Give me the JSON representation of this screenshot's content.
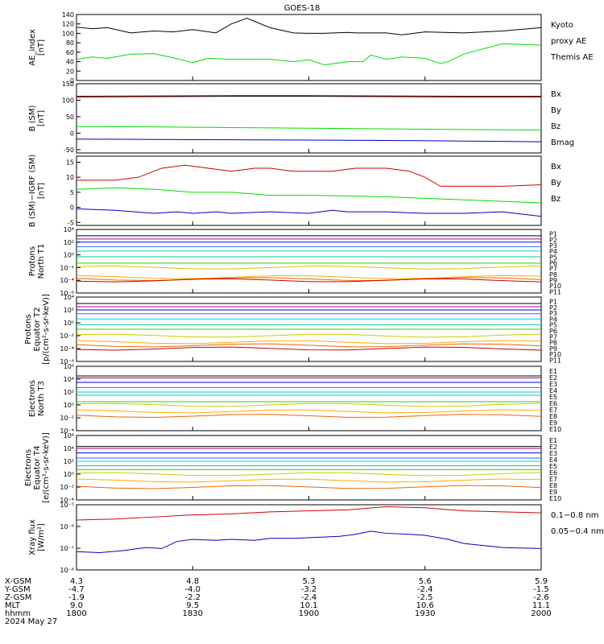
{
  "title": "GOES-18",
  "colors": {
    "black": "#000000",
    "green": "#00dd00",
    "blue": "#0000cc",
    "red": "#cc0000",
    "p": [
      "#000000",
      "#990099",
      "#0000ee",
      "#3366ff",
      "#00ccee",
      "#00cc99",
      "#33cc00",
      "#cccc00",
      "#ffaa00",
      "#ee6600",
      "#cc0000"
    ]
  },
  "chart_data": [
    {
      "type": "line",
      "ylabel": "AE_index\n[nT]",
      "yticks": [
        "140",
        "120",
        "100",
        "80",
        "60",
        "40",
        "20",
        "0"
      ],
      "ylim": [
        0,
        140
      ],
      "legend": [
        {
          "text": "Kyoto",
          "color": "#00dd00"
        },
        {
          "text": "proxy AE",
          "color": "#00dd00"
        },
        {
          "text": "Themis AE",
          "color": "#000000"
        }
      ],
      "series": [
        {
          "name": "Themis AE",
          "color": "#000000",
          "x": [
            0,
            4,
            8,
            14,
            20,
            25,
            30,
            36,
            40,
            44,
            50,
            56,
            60,
            64,
            70,
            72,
            80,
            84,
            90,
            100,
            110,
            120
          ],
          "y": [
            113,
            110,
            112,
            101,
            105,
            103,
            108,
            101,
            120,
            132,
            112,
            101,
            100,
            100,
            102,
            101,
            101,
            97,
            103,
            101,
            105,
            112
          ]
        },
        {
          "name": "Kyoto proxy AE",
          "color": "#00dd00",
          "x": [
            0,
            4,
            8,
            14,
            20,
            24,
            30,
            34,
            40,
            50,
            56,
            60,
            64,
            70,
            74,
            76,
            80,
            84,
            90,
            94,
            96,
            100,
            110,
            120
          ],
          "y": [
            45,
            50,
            47,
            56,
            57,
            50,
            38,
            47,
            45,
            45,
            40,
            44,
            33,
            40,
            40,
            54,
            45,
            50,
            47,
            36,
            40,
            56,
            78,
            75
          ]
        }
      ]
    },
    {
      "type": "line",
      "ylabel": "B (SM)\n[nT]",
      "yticks": [
        "150",
        "100",
        "50",
        "0",
        "-50"
      ],
      "ylim": [
        -60,
        150
      ],
      "legend": [
        {
          "text": "Bx",
          "color": "#0000cc"
        },
        {
          "text": "By",
          "color": "#00dd00"
        },
        {
          "text": "Bz",
          "color": "#cc0000"
        },
        {
          "text": "Bmag",
          "color": "#000000"
        }
      ],
      "series": [
        {
          "name": "Bz",
          "color": "#cc0000",
          "x": [
            0,
            20,
            40,
            60,
            80,
            100,
            120
          ],
          "y": [
            112,
            113,
            114,
            114,
            113,
            112,
            112
          ]
        },
        {
          "name": "Bmag",
          "color": "#000000",
          "x": [
            0,
            20,
            40,
            60,
            80,
            100,
            120
          ],
          "y": [
            110,
            111,
            112,
            112,
            111,
            110,
            110
          ]
        },
        {
          "name": "By",
          "color": "#00dd00",
          "x": [
            0,
            20,
            40,
            60,
            80,
            100,
            120
          ],
          "y": [
            20,
            19,
            17,
            15,
            13,
            11,
            9
          ]
        },
        {
          "name": "Bx",
          "color": "#0000cc",
          "x": [
            0,
            20,
            40,
            60,
            80,
            100,
            120
          ],
          "y": [
            -18,
            -19,
            -20,
            -21,
            -22,
            -24,
            -26
          ]
        }
      ]
    },
    {
      "type": "line",
      "ylabel": "B (SM)−IGRF (SM)\n[nT]",
      "yticks": [
        "15",
        "10",
        "5",
        "0",
        "-5"
      ],
      "ylim": [
        -6,
        17
      ],
      "legend": [
        {
          "text": "Bx",
          "color": "#0000cc"
        },
        {
          "text": "By",
          "color": "#00dd00"
        },
        {
          "text": "Bz",
          "color": "#cc0000"
        }
      ],
      "series": [
        {
          "name": "Bz",
          "color": "#cc0000",
          "x": [
            0,
            10,
            16,
            22,
            28,
            34,
            40,
            46,
            50,
            56,
            62,
            66,
            72,
            80,
            86,
            90,
            94,
            100,
            110,
            120
          ],
          "y": [
            9,
            9,
            10,
            13,
            14,
            13,
            12,
            13,
            13,
            12,
            12,
            12,
            13,
            13,
            12,
            10,
            7,
            7,
            7,
            7.5
          ]
        },
        {
          "name": "By",
          "color": "#00dd00",
          "x": [
            0,
            10,
            20,
            30,
            40,
            50,
            60,
            70,
            80,
            90,
            100,
            110,
            120
          ],
          "y": [
            6,
            6.5,
            6,
            5,
            5,
            4,
            4,
            3.8,
            3.5,
            3,
            2.5,
            2,
            1.5
          ]
        },
        {
          "name": "Bx",
          "color": "#0000cc",
          "x": [
            0,
            10,
            20,
            26,
            30,
            36,
            40,
            50,
            60,
            66,
            70,
            80,
            90,
            100,
            110,
            120
          ],
          "y": [
            -0.5,
            -1,
            -2,
            -1.5,
            -2,
            -1.5,
            -2,
            -1.5,
            -2,
            -1,
            -1.5,
            -1.5,
            -2,
            -2,
            -1.5,
            -3
          ]
        }
      ]
    },
    {
      "type": "line",
      "log": true,
      "ylabel": "Protons\nNorth T1",
      "yticks": [
        "10⁴",
        "10²",
        "10⁰",
        "10⁻²",
        "10⁻⁴",
        "10⁻⁶"
      ],
      "ylim": [
        -6,
        4
      ],
      "legend": [
        "P1",
        "P2",
        "P3",
        "P4",
        "P5",
        "P6",
        "P7",
        "P8",
        "P9",
        "P10",
        "P11"
      ],
      "levels": [
        3.0,
        2.5,
        2.0,
        1.3,
        0.6,
        -0.3,
        -1.3,
        -2.0,
        -3.5,
        -3.8,
        -4.0
      ]
    },
    {
      "type": "line",
      "log": true,
      "ylabel": "Protons\nEquator T2\n[p/(cm²-s-sr-keV)]",
      "yticks": [
        "10⁴",
        "10²",
        "10⁰",
        "10⁻²",
        "10⁻⁴",
        "10⁻⁶"
      ],
      "ylim": [
        -6,
        4
      ],
      "legend": [
        "P1",
        "P2",
        "P3",
        "P4",
        "P5",
        "P6",
        "P7",
        "P8",
        "P9",
        "P10",
        "P11"
      ],
      "levels": [
        3.0,
        2.5,
        2.0,
        1.4,
        0.6,
        -0.3,
        -1.0,
        -2.0,
        -3.0,
        -3.5,
        -4.0
      ]
    },
    {
      "type": "line",
      "log": true,
      "ylabel": "Electrons\nNorth T3",
      "yticks": [
        "10⁶",
        "10⁴",
        "10²",
        "10⁰",
        "10⁻²",
        "10⁻⁴"
      ],
      "ylim": [
        -4,
        6
      ],
      "legend": [
        "E1",
        "E2",
        "E3",
        "E4",
        "E5",
        "E6",
        "E7",
        "E8",
        "E9",
        "E10"
      ],
      "levels": [
        4.5,
        4.2,
        3.5,
        2.7,
        2.0,
        1.5,
        0.5,
        0.0,
        -1.0,
        -1.7
      ]
    },
    {
      "type": "line",
      "log": true,
      "ylabel": "Electrons\nEquator T4\n[e/(cm²-s-sr-keV)]",
      "yticks": [
        "10⁶",
        "10⁴",
        "10²",
        "10⁰",
        "10⁻²",
        "10⁻⁴"
      ],
      "ylim": [
        -4,
        6
      ],
      "legend": [
        "E1",
        "E2",
        "E3",
        "E4",
        "E5",
        "E6",
        "E7",
        "E8",
        "E9",
        "E10"
      ],
      "levels": [
        4.3,
        4.0,
        3.3,
        2.5,
        2.0,
        1.3,
        0.7,
        0.0,
        -1.0,
        -2.0
      ]
    },
    {
      "type": "line",
      "log": true,
      "ylabel": "Xray flux\n[W/m²]",
      "yticks": [
        "10⁻⁵",
        "10⁻⁶",
        "10⁻⁷",
        "10⁻⁸"
      ],
      "ylim": [
        -8.2,
        -5
      ],
      "legend": [
        {
          "text": "0.1−0.8 nm",
          "color": "#cc0000"
        },
        {
          "text": "0.05−0.4 nm",
          "color": "#0000cc"
        }
      ],
      "series": [
        {
          "name": "0.1-0.8 nm",
          "color": "#cc0000",
          "x": [
            0,
            10,
            20,
            30,
            40,
            50,
            60,
            70,
            80,
            90,
            100,
            110,
            120
          ],
          "y": [
            -5.75,
            -5.7,
            -5.6,
            -5.5,
            -5.45,
            -5.35,
            -5.3,
            -5.25,
            -5.1,
            -5.15,
            -5.3,
            -5.35,
            -5.4
          ]
        },
        {
          "name": "0.05-0.4 nm",
          "color": "#0000cc",
          "x": [
            0,
            6,
            12,
            18,
            22,
            26,
            30,
            36,
            40,
            46,
            50,
            56,
            62,
            68,
            72,
            76,
            80,
            86,
            90,
            96,
            100,
            110,
            120
          ],
          "y": [
            -7.3,
            -7.35,
            -7.25,
            -7.1,
            -7.15,
            -6.8,
            -6.7,
            -6.75,
            -6.7,
            -6.75,
            -6.65,
            -6.65,
            -6.6,
            -6.55,
            -6.45,
            -6.3,
            -6.4,
            -6.45,
            -6.5,
            -6.7,
            -6.9,
            -7.1,
            -7.15
          ]
        }
      ]
    }
  ],
  "xaxis": {
    "rows": [
      {
        "label": "X-GSM",
        "values": [
          "4.3",
          "4.8",
          "5.3",
          "5.6",
          "5.9"
        ]
      },
      {
        "label": "Y-GSM",
        "values": [
          "-4.7",
          "-4.0",
          "-3.2",
          "-2.4",
          "-1.5"
        ]
      },
      {
        "label": "Z-GSM",
        "values": [
          "-1.9",
          "-2.2",
          "-2.4",
          "-2.5",
          "-2.6"
        ]
      },
      {
        "label": "MLT",
        "values": [
          "9.0",
          "9.5",
          "10.1",
          "10.6",
          "11.1"
        ]
      },
      {
        "label": "hhmm",
        "values": [
          "1800",
          "1830",
          "1900",
          "1930",
          "2000"
        ]
      }
    ],
    "date": "2024 May 27"
  }
}
